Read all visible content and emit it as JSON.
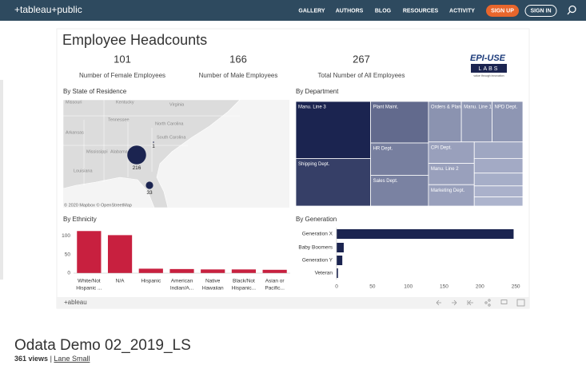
{
  "nav": {
    "logo": "+tableau+public",
    "links": [
      "GALLERY",
      "AUTHORS",
      "BLOG",
      "RESOURCES",
      "ACTIVITY"
    ],
    "sign_up": "SIGN UP",
    "sign_in": "SIGN IN"
  },
  "dashboard": {
    "title": "Employee Headcounts",
    "kpis": [
      {
        "value": 101,
        "label": "Number of Female Employees"
      },
      {
        "value": 166,
        "label": "Number of Male Employees"
      },
      {
        "value": 267,
        "label": "Total Number of All Employees"
      }
    ],
    "logo": {
      "text": "EPI-USE",
      "sub": "LABS",
      "tagline": "value through innovation"
    }
  },
  "map": {
    "title": "By State of Residence",
    "labels": [
      "Missouri",
      "Kentucky",
      "Virginia",
      "Tennessee",
      "North Carolina",
      "Arkansas",
      "South Carolina",
      "Mississippi",
      "Alabama",
      "Louisiana"
    ],
    "bubbles": [
      216,
      1,
      33
    ],
    "credit": "© 2020 Mapbox © OpenStreetMap"
  },
  "treemap": {
    "title": "By Department",
    "cells": [
      {
        "children": [
          {
            "name": "Manu. Line 3",
            "value": 48
          },
          {
            "name": "Shipping Dept.",
            "value": 40
          }
        ]
      },
      {
        "children": [
          {
            "name": "Plant Maint.",
            "value": 27
          },
          {
            "name": "HR Dept.",
            "value": 21
          },
          {
            "name": "Sales Dept.",
            "value": 20
          }
        ]
      },
      {
        "children": [
          {
            "children": [
              {
                "name": "Orders & Planning",
                "value": 15
              },
              {
                "name": "Manu. Line 1",
                "value": 14
              },
              {
                "name": "NPD Dept.",
                "value": 14
              }
            ]
          },
          {
            "children": [
              {
                "children": [
                  {
                    "name": "CPI Dept.",
                    "value": 11
                  },
                  {
                    "name": "Manu. Line 2",
                    "value": 11
                  },
                  {
                    "name": "Marketing Dept.",
                    "value": 11
                  }
                ]
              },
              {
                "children": [
                  {
                    "value": 9
                  },
                  {
                    "value": 8
                  },
                  {
                    "value": 7
                  },
                  {
                    "value": 6
                  },
                  {
                    "value": 5
                  }
                ]
              }
            ]
          }
        ]
      }
    ]
  },
  "ethnicity": {
    "type": "bar",
    "title": "By Ethnicity",
    "categories": [
      [
        "White/Not",
        "Hispanic ..."
      ],
      [
        "N/A"
      ],
      [
        "Hispanic"
      ],
      [
        "American",
        "Indian/A..."
      ],
      [
        "Native",
        "Hawaiian"
      ],
      [
        "Black/Not",
        "Hispanic..."
      ],
      [
        "Asian or",
        "Pacific..."
      ]
    ],
    "values": [
      113,
      102,
      12,
      11,
      10,
      10,
      9
    ],
    "color": "#c8203f",
    "ylim": [
      0,
      120
    ],
    "yticks": [
      0,
      50,
      100
    ]
  },
  "generation": {
    "type": "bar",
    "orientation": "horizontal",
    "title": "By Generation",
    "categories": [
      "Generation X",
      "Baby Boomers",
      "Generation Y",
      "Veteran"
    ],
    "values": [
      247,
      10,
      8,
      2
    ],
    "color": "#1b2450",
    "xlim": [
      0,
      261
    ],
    "xticks": [
      0,
      50,
      100,
      150,
      200,
      250
    ]
  },
  "toolbar": {
    "brand": "+ableau"
  },
  "footer": {
    "title": "Odata Demo 02_2019_LS",
    "views": "361 views",
    "separator": "|",
    "author": "Lane Small"
  }
}
